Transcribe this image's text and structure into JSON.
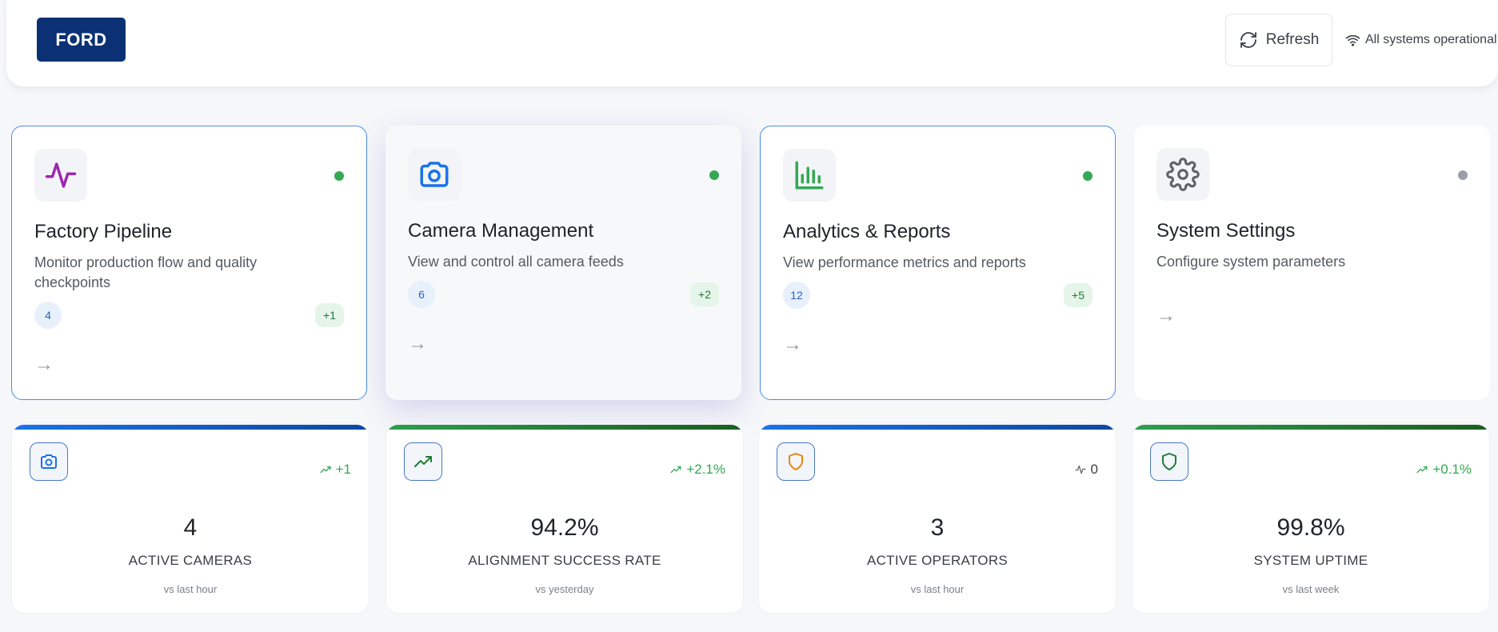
{
  "header": {
    "logo": "FORD",
    "refresh_label": "Refresh",
    "status_text": "All systems operational"
  },
  "modules": [
    {
      "icon": "activity-icon",
      "title": "Factory Pipeline",
      "description": "Monitor production flow and quality checkpoints",
      "count": "4",
      "delta": "+1",
      "status_color": "#34a853"
    },
    {
      "icon": "camera-icon",
      "title": "Camera Management",
      "description": "View and control all camera feeds",
      "count": "6",
      "delta": "+2",
      "status_color": "#34a853"
    },
    {
      "icon": "bar-chart-icon",
      "title": "Analytics & Reports",
      "description": "View performance metrics and reports",
      "count": "12",
      "delta": "+5",
      "status_color": "#34a853"
    },
    {
      "icon": "gear-icon",
      "title": "System Settings",
      "description": "Configure system parameters",
      "count": "",
      "delta": "",
      "status_color": "#9aa0a6"
    }
  ],
  "stats": [
    {
      "icon": "camera-icon",
      "trend": "+1",
      "trend_direction": "up",
      "value": "4",
      "label": "ACTIVE CAMERAS",
      "comparison": "vs last hour",
      "accent": "#1f5fbf"
    },
    {
      "icon": "trending-up-icon",
      "trend": "+2.1%",
      "trend_direction": "up",
      "value": "94.2%",
      "label": "ALIGNMENT SUCCESS RATE",
      "comparison": "vs yesterday",
      "accent": "#1e7e34"
    },
    {
      "icon": "shield-icon",
      "trend": "0",
      "trend_direction": "neutral",
      "value": "3",
      "label": "ACTIVE OPERATORS",
      "comparison": "vs last hour",
      "accent": "#1f5fbf"
    },
    {
      "icon": "shield-icon",
      "trend": "+0.1%",
      "trend_direction": "up",
      "value": "99.8%",
      "label": "SYSTEM UPTIME",
      "comparison": "vs last week",
      "accent": "#1e7e34"
    }
  ],
  "colors": {
    "brand": "#0b3174",
    "positive": "#34a853",
    "neutral": "#5f6368"
  }
}
